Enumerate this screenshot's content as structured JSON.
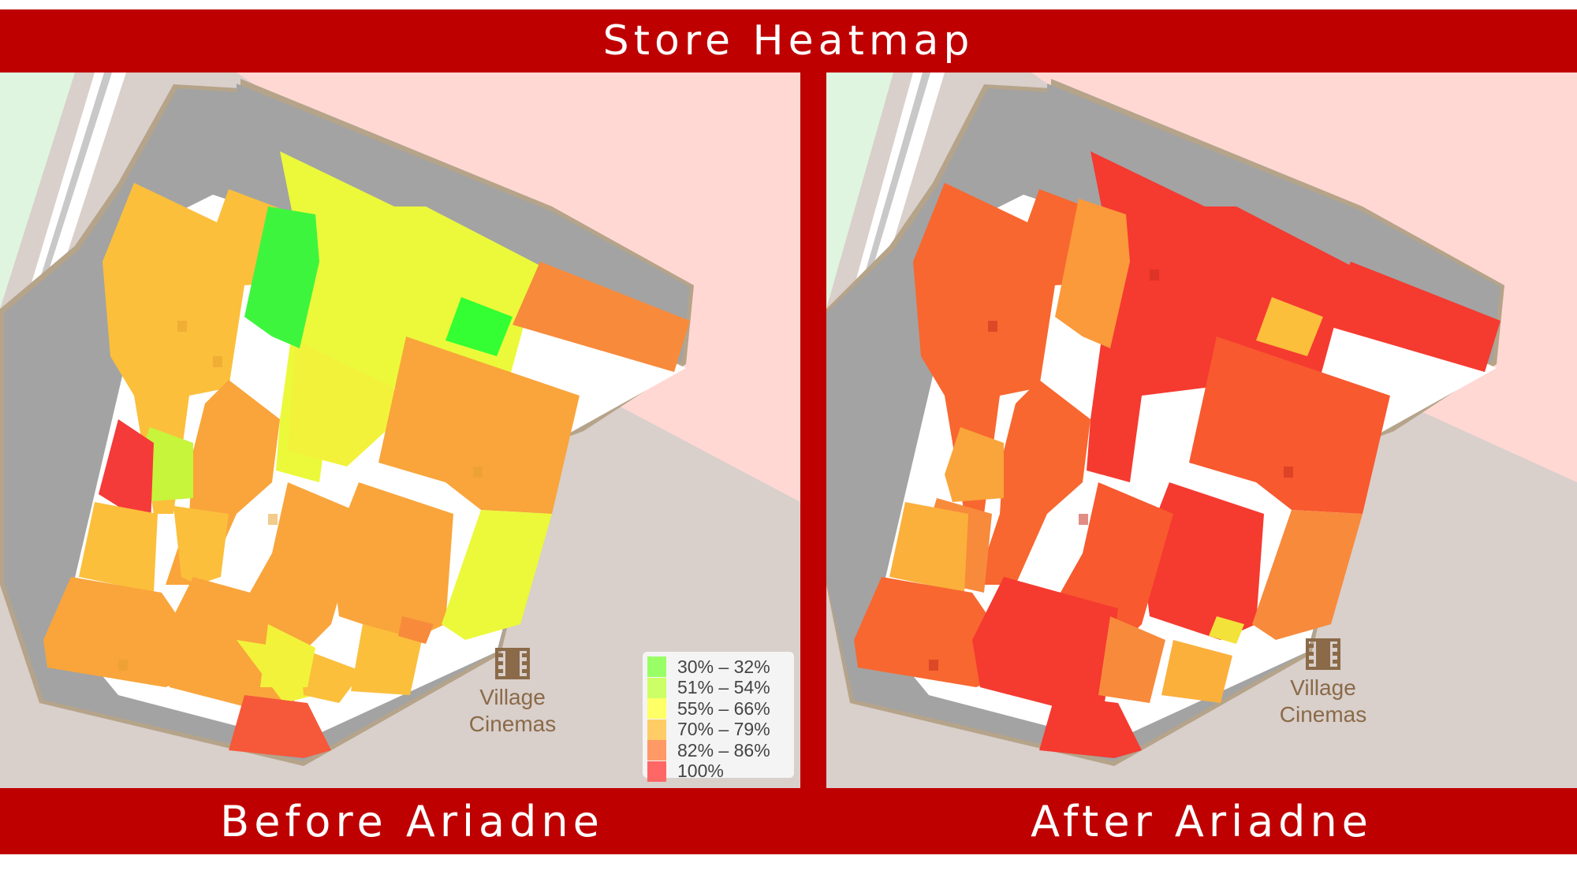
{
  "header": {
    "title": "Store Heatmap"
  },
  "panels": {
    "before": {
      "caption": "Before Ariadne"
    },
    "after": {
      "caption": "After Ariadne"
    }
  },
  "point_of_interest": {
    "line1": "Village",
    "line2": "Cinemas",
    "icon": "film-icon"
  },
  "legend": {
    "items": [
      {
        "label": "30% – 32%",
        "color": "#33ff33"
      },
      {
        "label": "51% – 54%",
        "color": "#c6f53b"
      },
      {
        "label": "55% – 66%",
        "color": "#f2f23a"
      },
      {
        "label": "70% – 79%",
        "color": "#fbbf3c"
      },
      {
        "label": "82% – 86%",
        "color": "#f88a3c"
      },
      {
        "label": "100%",
        "color": "#f53a3a"
      }
    ]
  },
  "colors": {
    "brand_red": "#bf0000",
    "background_pink": "#ffd8d4",
    "background_taupe": "#d9cfcb",
    "building_gray": "#a3a3a3",
    "park_green": "#dff5df"
  }
}
